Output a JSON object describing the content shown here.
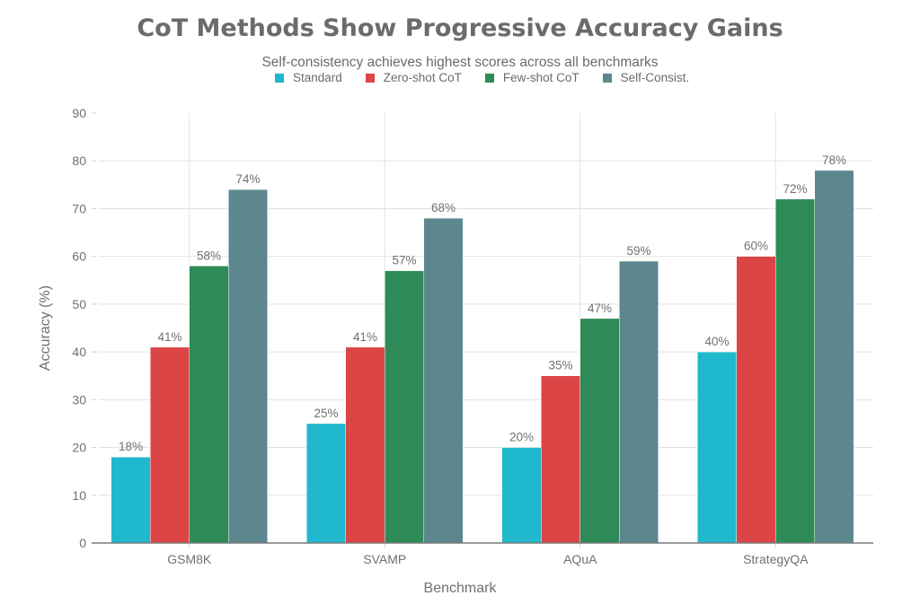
{
  "chart_data": {
    "type": "bar",
    "title": "CoT Methods Show Progressive Accuracy Gains",
    "subtitle": "Self-consistency achieves highest scores across all benchmarks",
    "xlabel": "Benchmark",
    "ylabel": "Accuracy (%)",
    "ylim": [
      0,
      90
    ],
    "yticks": [
      0,
      10,
      20,
      30,
      40,
      50,
      60,
      70,
      80,
      90
    ],
    "grid": true,
    "legend_position": "top-center",
    "categories": [
      "GSM8K",
      "SVAMP",
      "AQuA",
      "StrategyQA"
    ],
    "series": [
      {
        "name": "Standard",
        "color": "#1fb8cd",
        "values": [
          18,
          25,
          20,
          40
        ],
        "labels": [
          "18%",
          "25%",
          "20%",
          "40%"
        ]
      },
      {
        "name": "Zero-shot CoT",
        "color": "#db4545",
        "values": [
          41,
          41,
          35,
          60
        ],
        "labels": [
          "41%",
          "41%",
          "35%",
          "60%"
        ]
      },
      {
        "name": "Few-shot CoT",
        "color": "#2e8b57",
        "values": [
          58,
          57,
          47,
          72
        ],
        "labels": [
          "58%",
          "57%",
          "47%",
          "72%"
        ]
      },
      {
        "name": "Self-Consist.",
        "color": "#5d878f",
        "values": [
          74,
          68,
          59,
          78
        ],
        "labels": [
          "74%",
          "68%",
          "59%",
          "78%"
        ]
      }
    ]
  }
}
